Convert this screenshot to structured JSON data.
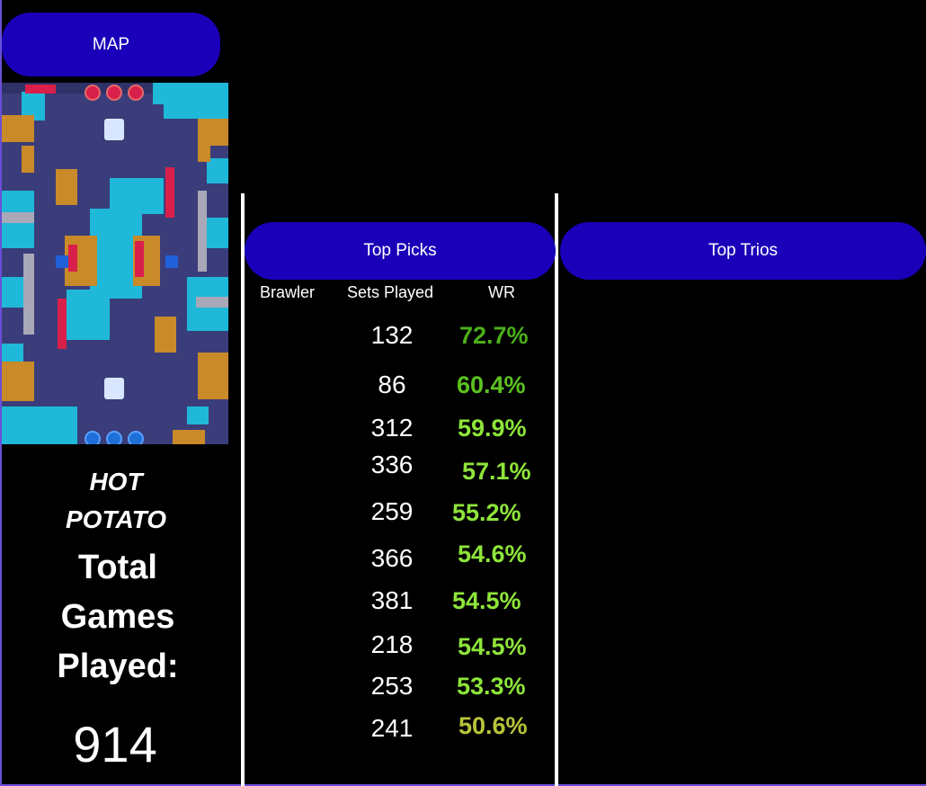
{
  "map_panel": {
    "header": "MAP",
    "map_name_line1": "HOT",
    "map_name_line2": "POTATO",
    "total_label_line1": "Total",
    "total_label_line2": "Games",
    "total_label_line3": "Played:",
    "total_games": "914"
  },
  "top_picks": {
    "header": "Top Picks",
    "columns": {
      "brawler": "Brawler",
      "sets_played": "Sets Played",
      "wr": "WR"
    },
    "rows": [
      {
        "sets": "132",
        "wr": "72.7%",
        "wr_color": "#4caf1a"
      },
      {
        "sets": "86",
        "wr": "60.4%",
        "wr_color": "#5cc21f"
      },
      {
        "sets": "312",
        "wr": "59.9%",
        "wr_color": "#8ee53a"
      },
      {
        "sets": "336",
        "wr": "57.1%",
        "wr_color": "#8ee53a"
      },
      {
        "sets": "259",
        "wr": "55.2%",
        "wr_color": "#8ee53a"
      },
      {
        "sets": "366",
        "wr": "54.6%",
        "wr_color": "#8ee53a"
      },
      {
        "sets": "381",
        "wr": "54.5%",
        "wr_color": "#8ee53a"
      },
      {
        "sets": "218",
        "wr": "54.5%",
        "wr_color": "#8ee53a"
      },
      {
        "sets": "253",
        "wr": "53.3%",
        "wr_color": "#8ee53a"
      },
      {
        "sets": "241",
        "wr": "50.6%",
        "wr_color": "#b8c43a"
      }
    ]
  },
  "top_trios": {
    "header": "Top Trios"
  },
  "colors": {
    "pill": "#1a00b8",
    "background": "#000000",
    "frame": "#6a4fd8"
  }
}
